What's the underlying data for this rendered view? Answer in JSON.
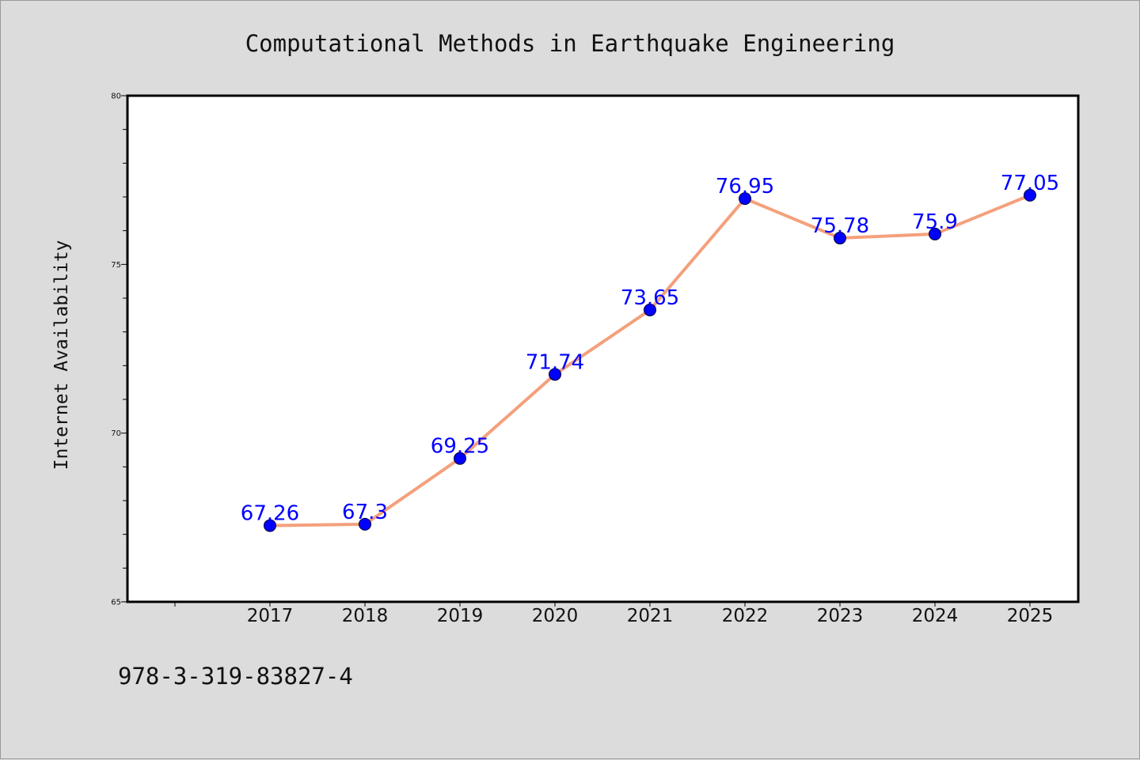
{
  "chart_data": {
    "type": "line",
    "title": "Computational Methods in Earthquake Engineering",
    "xlabel": "",
    "ylabel": "Internet Availability",
    "categories": [
      "2017",
      "2018",
      "2019",
      "2020",
      "2021",
      "2022",
      "2023",
      "2024",
      "2025"
    ],
    "series": [
      {
        "values": [
          67.26,
          67.3,
          69.25,
          71.74,
          73.65,
          76.95,
          75.78,
          75.9,
          77.05
        ],
        "data_labels": [
          "67.26",
          "67.3",
          "69.25",
          "71.74",
          "73.65",
          "76.95",
          "75.78",
          "75.9",
          "77.05"
        ],
        "line_color": "#f4a07c",
        "marker_color": "#0000ff"
      }
    ],
    "ylim": [
      65,
      80
    ],
    "yticks": [
      "65",
      "70",
      "75",
      "80"
    ],
    "grid": false,
    "background_color": "#dcdcdc",
    "plot_background": "#ffffff"
  },
  "footer": {
    "isbn": "978-3-319-83827-4"
  }
}
